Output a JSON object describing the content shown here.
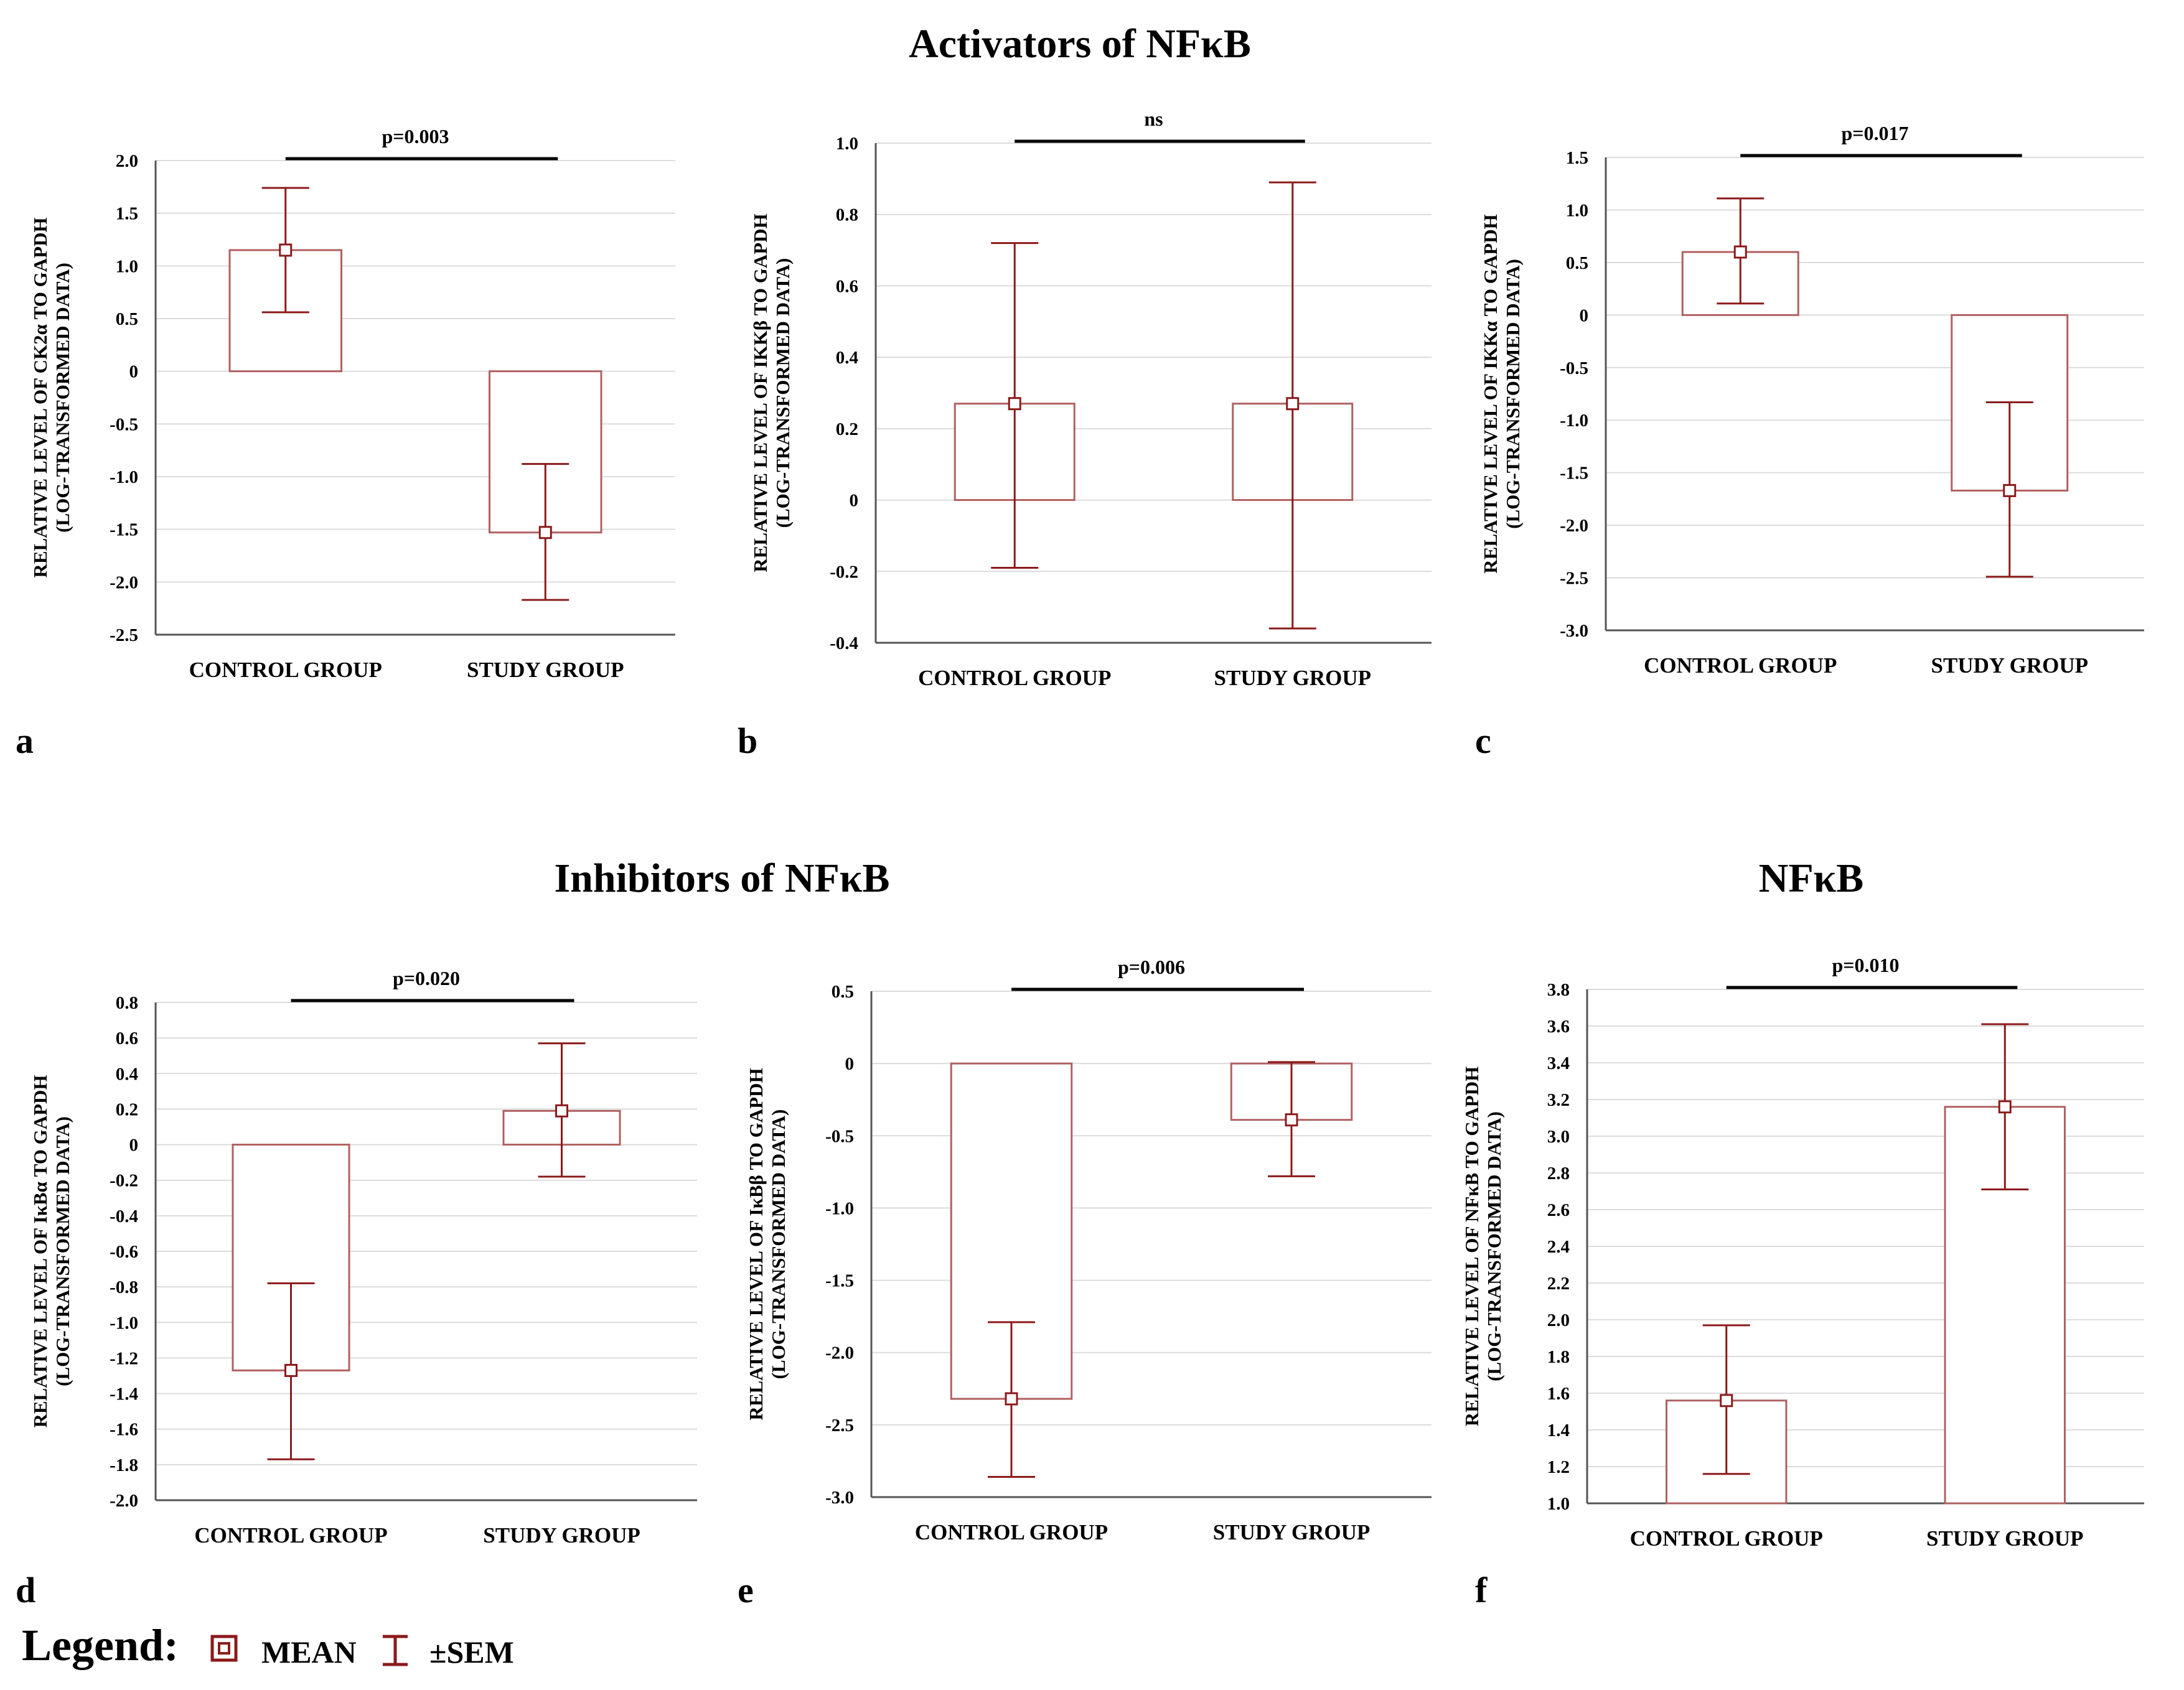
{
  "headings": {
    "activators": "Activators of NFκB",
    "inhibitors": "Inhibitors of NFκB",
    "nfkb": "NFκB"
  },
  "legend": {
    "label": "Legend",
    "colon": ":",
    "mean": "MEAN",
    "sem": "±SEM"
  },
  "colors": {
    "bar": "#b06060",
    "error": "#8b1a1a",
    "grid": "#dcdcdc",
    "axis": "#555555"
  },
  "chart_data": [
    {
      "panel": "a",
      "type": "bar",
      "categories": [
        "CONTROL GROUP",
        "STUDY GROUP"
      ],
      "series": [
        {
          "mean": [
            1.15,
            -1.53
          ],
          "sem_low": [
            0.56,
            -2.17
          ],
          "sem_high": [
            1.74,
            -0.88
          ]
        }
      ],
      "ylabel": [
        "RELATIVE LEVEL OF CK2α TO GAPDH",
        "(LOG-TRANSFORMED DATA)"
      ],
      "ylim": [
        -2.5,
        2.0
      ],
      "yticks": [
        2.0,
        1.5,
        1.0,
        0.5,
        0,
        -0.5,
        -1.0,
        -1.5,
        -2.0,
        -2.5
      ],
      "ytick_labels": [
        "2.0",
        "1.5",
        "1.0",
        "0.5",
        "0",
        "-0.5",
        "-1.0",
        "-1.5",
        "-2.0",
        "-2.5"
      ],
      "annotation": "p=0.003",
      "grid": true
    },
    {
      "panel": "b",
      "type": "bar",
      "categories": [
        "CONTROL GROUP",
        "STUDY GROUP"
      ],
      "series": [
        {
          "mean": [
            0.27,
            0.27
          ],
          "sem_low": [
            -0.19,
            -0.36
          ],
          "sem_high": [
            0.72,
            0.89
          ]
        }
      ],
      "ylabel": [
        "RELATIVE LEVEL OF IKKβ TO GAPDH",
        "(LOG-TRANSFORMED DATA)"
      ],
      "ylim": [
        -0.4,
        1.0
      ],
      "yticks": [
        1.0,
        0.8,
        0.6,
        0.4,
        0.2,
        0,
        -0.2,
        -0.4
      ],
      "ytick_labels": [
        "1.0",
        "0.8",
        "0.6",
        "0.4",
        "0.2",
        "0",
        "-0.2",
        "-0.4"
      ],
      "annotation": "ns",
      "grid": true
    },
    {
      "panel": "c",
      "type": "bar",
      "categories": [
        "CONTROL GROUP",
        "STUDY GROUP"
      ],
      "series": [
        {
          "mean": [
            0.6,
            -1.67
          ],
          "sem_low": [
            0.11,
            -2.49
          ],
          "sem_high": [
            1.11,
            -0.83
          ]
        }
      ],
      "ylabel": [
        "RELATIVE LEVEL OF IKKα TO GAPDH",
        "(LOG-TRANSFORMED DATA)"
      ],
      "ylim": [
        -3.0,
        1.5
      ],
      "yticks": [
        1.5,
        1.0,
        0.5,
        0,
        -0.5,
        -1.0,
        -1.5,
        -2.0,
        -2.5,
        -3.0
      ],
      "ytick_labels": [
        "1.5",
        "1.0",
        "0.5",
        "0",
        "-0.5",
        "-1.0",
        "-1.5",
        "-2.0",
        "-2.5",
        "-3.0"
      ],
      "annotation": "p=0.017",
      "grid": true
    },
    {
      "panel": "d",
      "type": "bar",
      "categories": [
        "CONTROL GROUP",
        "STUDY GROUP"
      ],
      "series": [
        {
          "mean": [
            -1.27,
            0.19
          ],
          "sem_low": [
            -1.77,
            -0.18
          ],
          "sem_high": [
            -0.78,
            0.57
          ]
        }
      ],
      "ylabel": [
        "RELATIVE LEVEL OF IκBα TO GAPDH",
        "(LOG-TRANSFORMED DATA)"
      ],
      "ylim": [
        -2.0,
        0.8
      ],
      "yticks": [
        0.8,
        0.6,
        0.4,
        0.2,
        0,
        -0.2,
        -0.4,
        -0.6,
        -0.8,
        -1.0,
        -1.2,
        -1.4,
        -1.6,
        -1.8,
        -2.0
      ],
      "ytick_labels": [
        "0.8",
        "0.6",
        "0.4",
        "0.2",
        "0",
        "-0.2",
        "-0.4",
        "-0.6",
        "-0.8",
        "-1.0",
        "-1.2",
        "-1.4",
        "-1.6",
        "-1.8",
        "-2.0"
      ],
      "annotation": "p=0.020",
      "grid": true
    },
    {
      "panel": "e",
      "type": "bar",
      "categories": [
        "CONTROL GROUP",
        "STUDY GROUP"
      ],
      "series": [
        {
          "mean": [
            -2.32,
            -0.39
          ],
          "sem_low": [
            -2.86,
            -0.78
          ],
          "sem_high": [
            -1.79,
            0.01
          ]
        }
      ],
      "ylabel": [
        "RELATIVE LEVEL OF IκBβ TO GAPDH",
        "(LOG-TRANSFORMED DATA)"
      ],
      "ylim": [
        -3.0,
        0.5
      ],
      "yticks": [
        0.5,
        0,
        -0.5,
        -1.0,
        -1.5,
        -2.0,
        -2.5,
        -3.0
      ],
      "ytick_labels": [
        "0.5",
        "0",
        "-0.5",
        "-1.0",
        "-1.5",
        "-2.0",
        "-2.5",
        "-3.0"
      ],
      "annotation": "p=0.006",
      "grid": true
    },
    {
      "panel": "f",
      "type": "bar",
      "categories": [
        "CONTROL GROUP",
        "STUDY GROUP"
      ],
      "series": [
        {
          "mean": [
            1.56,
            3.16
          ],
          "sem_low": [
            1.16,
            2.71
          ],
          "sem_high": [
            1.97,
            3.61
          ]
        }
      ],
      "ylabel": [
        "RELATIVE LEVEL OF NFκB TO GAPDH",
        "(LOG-TRANSFORMED DATA)"
      ],
      "ylim": [
        1.0,
        3.8
      ],
      "yticks": [
        3.8,
        3.6,
        3.4,
        3.2,
        3.0,
        2.8,
        2.6,
        2.4,
        2.2,
        2.0,
        1.8,
        1.6,
        1.4,
        1.2,
        1.0
      ],
      "ytick_labels": [
        "3.8",
        "3.6",
        "3.4",
        "3.2",
        "3.0",
        "2.8",
        "2.6",
        "2.4",
        "2.2",
        "2.0",
        "1.8",
        "1.6",
        "1.4",
        "1.2",
        "1.0"
      ],
      "annotation": "p=0.010",
      "grid": true
    }
  ]
}
